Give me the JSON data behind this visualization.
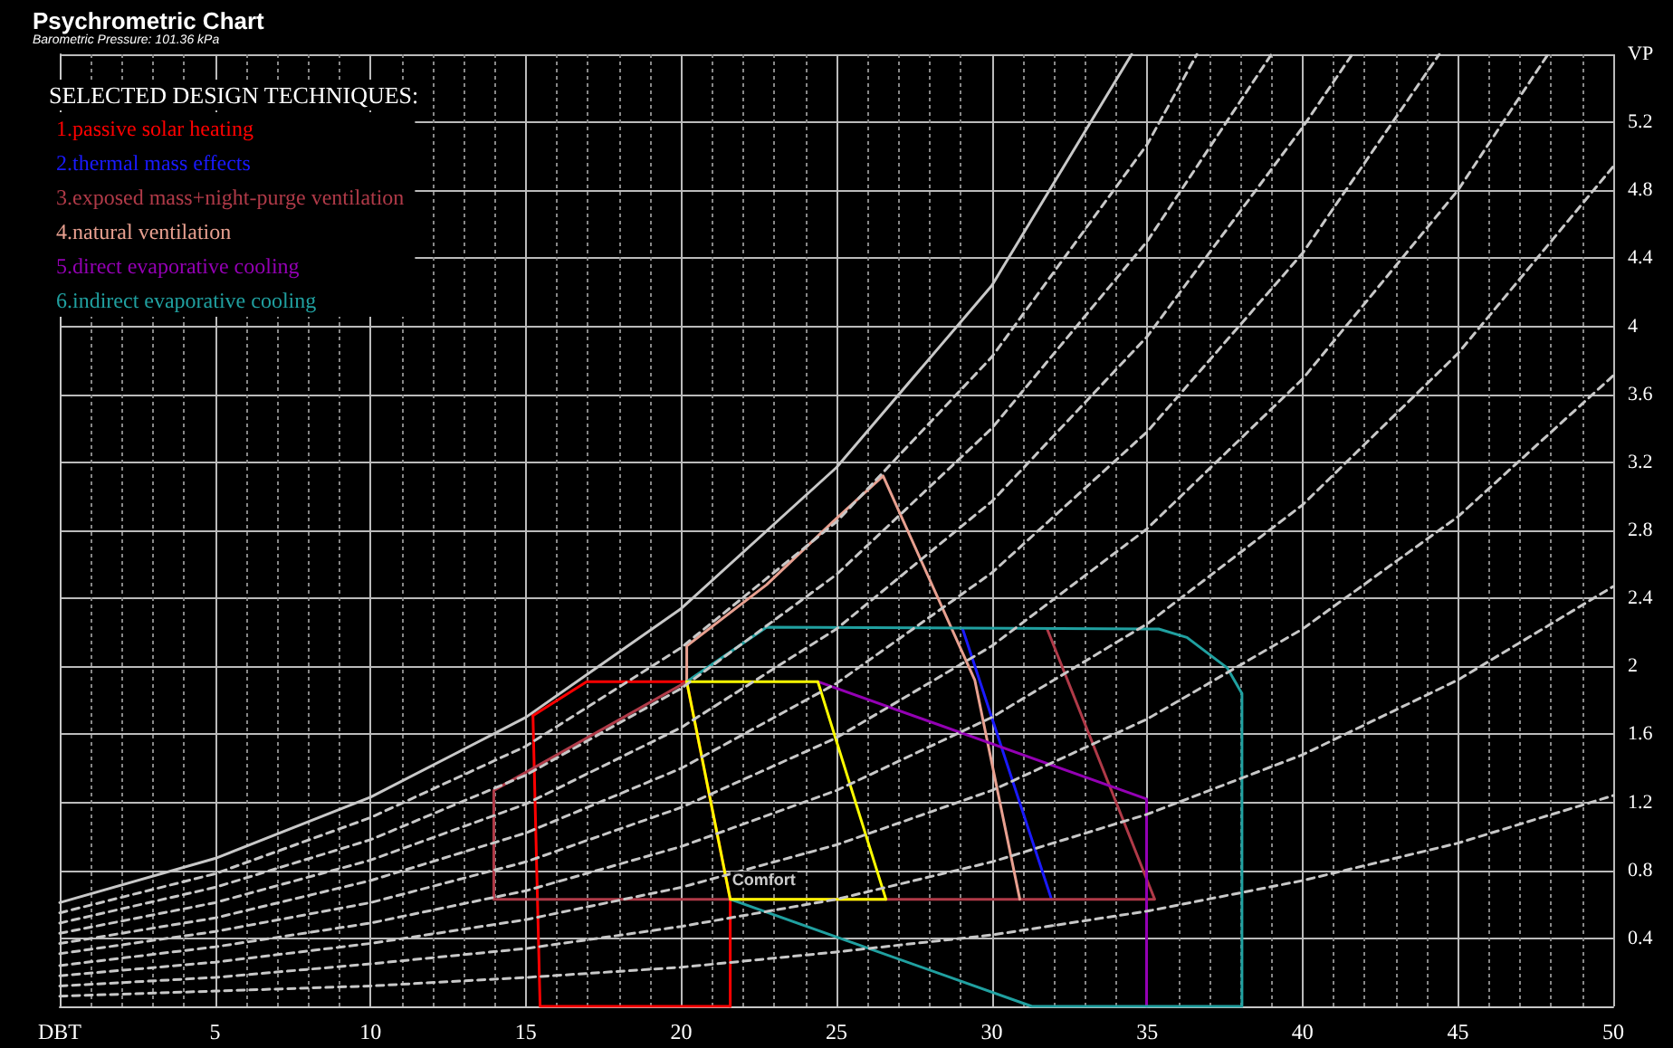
{
  "chart_data": {
    "type": "line",
    "title": "Psychrometric Chart",
    "subtitle": "Barometric Pressure: 101.36 kPa",
    "legend_title": "SELECTED DESIGN TECHNIQUES:",
    "annotations": [
      {
        "text": "Comfort",
        "x": 21.7,
        "y": 0.66
      }
    ],
    "xlim": [
      0,
      50
    ],
    "ylim": [
      0,
      5.6
    ],
    "xticks": [
      {
        "value": 0,
        "label": "DBT"
      },
      5,
      10,
      15,
      20,
      25,
      30,
      35,
      40,
      45,
      50
    ],
    "yticks": [
      0.4,
      0.8,
      1.2,
      1.6,
      2.0,
      2.4,
      2.8,
      3.2,
      3.6,
      4.0,
      4.4,
      4.8,
      5.2,
      {
        "value": 5.6,
        "label": "VP"
      }
    ],
    "grid": true,
    "legend": "top left",
    "marker": "none",
    "series": [
      {
        "name": "1.passive solar heating",
        "color": "#ff0000",
        "x": [
          15.23,
          16.96,
          20.18,
          21.58,
          21.58
        ],
        "values": [
          1.71,
          1.91,
          1.91,
          0.63,
          0
        ]
      },
      {
        "color": "#ff0000",
        "x": [
          15.23,
          15.46,
          21.58
        ],
        "values": [
          1.71,
          0,
          0
        ]
      },
      {
        "name": "2.thermal mass effects",
        "color": "#1a1aff",
        "x": [
          29.06,
          31.92
        ],
        "values": [
          2.22,
          0.63
        ]
      },
      {
        "name": "3.exposed mass+night-purge ventilation",
        "color": "#b03a48",
        "x": [
          31.78,
          35.24,
          13.97,
          13.97,
          20.18
        ],
        "values": [
          2.22,
          0.63,
          0.63,
          1.27,
          1.91
        ]
      },
      {
        "name": "4.natural ventilation",
        "color": "#e8a090",
        "x": [
          20.18,
          20.18,
          22.75,
          24.88,
          26.5,
          29.45,
          30.9
        ],
        "values": [
          1.91,
          2.12,
          2.48,
          2.85,
          3.12,
          1.92,
          0.63
        ]
      },
      {
        "name": "5.direct evaporative cooling",
        "color": "#9400b4",
        "x": [
          24.4,
          34.98,
          34.98
        ],
        "values": [
          1.91,
          1.22,
          0
        ]
      },
      {
        "name": "6.indirect evaporative cooling",
        "color": "#20a0a0",
        "x": [
          20.18,
          22.75,
          35.37,
          36.28,
          37.58,
          38.05,
          38.05,
          31.29,
          21.58
        ],
        "values": [
          1.91,
          2.23,
          2.22,
          2.17,
          1.99,
          1.84,
          0,
          0,
          0.63
        ]
      },
      {
        "color": "#ffff00",
        "x": [
          20.18,
          24.4,
          26.59
        ],
        "values": [
          1.91,
          1.91,
          0.63
        ]
      },
      {
        "color": "#ffff00",
        "x": [
          20.18,
          21.58,
          26.59
        ],
        "values": [
          1.91,
          0.63,
          0.63
        ]
      },
      {
        "color": "#c8c8c8",
        "x": [
          0,
          5,
          10,
          15,
          20,
          25,
          30,
          34.5
        ],
        "values": [
          0.61,
          0.87,
          1.23,
          1.7,
          2.34,
          3.17,
          4.24,
          5.6
        ]
      },
      {
        "color": "#c8c8c8",
        "line_style": "dashed",
        "x": [
          0,
          5,
          10,
          15,
          20,
          25,
          30,
          35,
          40,
          45,
          50
        ],
        "values": [
          0.06,
          0.09,
          0.12,
          0.17,
          0.23,
          0.32,
          0.42,
          0.56,
          0.74,
          0.96,
          1.24
        ]
      },
      {
        "color": "#c8c8c8",
        "line_style": "dashed",
        "x": [
          0,
          5,
          10,
          15,
          20,
          25,
          30,
          35,
          40,
          45,
          50
        ],
        "values": [
          0.12,
          0.17,
          0.25,
          0.34,
          0.47,
          0.63,
          0.85,
          1.13,
          1.48,
          1.92,
          2.47
        ]
      },
      {
        "color": "#c8c8c8",
        "line_style": "dashed",
        "x": [
          0,
          5,
          10,
          15,
          20,
          25,
          30,
          35,
          40,
          45,
          50
        ],
        "values": [
          0.18,
          0.26,
          0.37,
          0.51,
          0.7,
          0.95,
          1.27,
          1.69,
          2.22,
          2.88,
          3.71
        ]
      },
      {
        "color": "#c8c8c8",
        "line_style": "dashed",
        "x": [
          0,
          5,
          10,
          15,
          20,
          25,
          30,
          35,
          40,
          45,
          50
        ],
        "values": [
          0.24,
          0.35,
          0.49,
          0.68,
          0.94,
          1.27,
          1.7,
          2.25,
          2.95,
          3.84,
          4.94
        ]
      },
      {
        "color": "#c8c8c8",
        "line_style": "dashed",
        "x": [
          0,
          5,
          10,
          15,
          20,
          25,
          30,
          35,
          40,
          45,
          47.9
        ],
        "values": [
          0.31,
          0.44,
          0.61,
          0.85,
          1.17,
          1.58,
          2.12,
          2.81,
          3.69,
          4.8,
          5.6
        ]
      },
      {
        "color": "#c8c8c8",
        "line_style": "dashed",
        "x": [
          0,
          5,
          10,
          15,
          20,
          25,
          30,
          35,
          40,
          44.4
        ],
        "values": [
          0.37,
          0.52,
          0.74,
          1.02,
          1.4,
          1.9,
          2.55,
          3.38,
          4.43,
          5.6
        ]
      },
      {
        "color": "#c8c8c8",
        "line_style": "dashed",
        "x": [
          0,
          5,
          10,
          15,
          20,
          25,
          30,
          35,
          40,
          41.6
        ],
        "values": [
          0.43,
          0.61,
          0.86,
          1.19,
          1.64,
          2.22,
          2.97,
          3.94,
          5.17,
          5.6
        ]
      },
      {
        "color": "#c8c8c8",
        "line_style": "dashed",
        "x": [
          0,
          5,
          10,
          15,
          20,
          25,
          30,
          35,
          39
        ],
        "values": [
          0.49,
          0.7,
          0.98,
          1.36,
          1.87,
          2.54,
          3.4,
          4.5,
          5.6
        ]
      },
      {
        "color": "#c8c8c8",
        "line_style": "dashed",
        "x": [
          0,
          5,
          10,
          15,
          20,
          25,
          30,
          35,
          36.6
        ],
        "values": [
          0.55,
          0.78,
          1.11,
          1.53,
          2.11,
          2.85,
          3.82,
          5.07,
          5.6
        ]
      }
    ]
  }
}
